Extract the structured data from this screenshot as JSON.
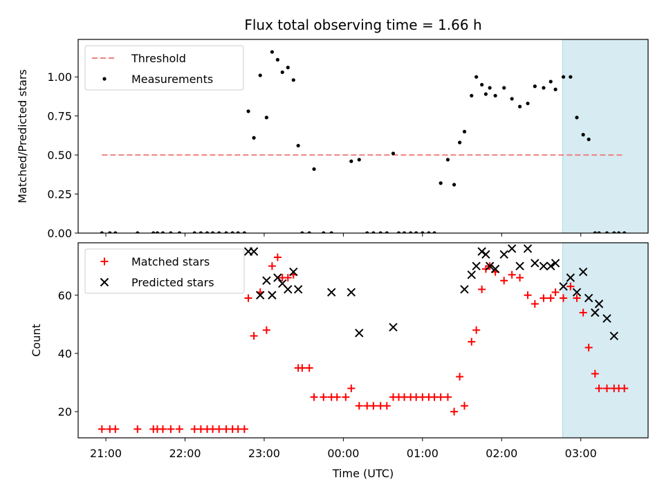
{
  "chart_data": {
    "type": "scatter",
    "title": "Flux total observing time = 1.66 h",
    "xlabel": "Time (UTC)",
    "x_tick_labels": [
      "21:00",
      "22:00",
      "23:00",
      "00:00",
      "01:00",
      "02:00",
      "03:00"
    ],
    "x_ticks_hours": [
      21,
      22,
      23,
      24,
      25,
      26,
      27
    ],
    "xlim_hours": [
      20.65,
      27.85
    ],
    "shaded_interval_hours": [
      26.77,
      28.43
    ],
    "shade_color": "#add8e6",
    "panels": [
      {
        "ylabel": "Matched/Predicted stars",
        "ylim": [
          0,
          1.24
        ],
        "y_ticks": [
          0,
          0.25,
          0.5,
          0.75,
          1.0
        ],
        "y_tick_labels": [
          "0.00",
          "0.25",
          "0.50",
          "0.75",
          "1.00"
        ],
        "legend": {
          "position": "top-left",
          "entries": [
            "Threshold",
            "Measurements"
          ]
        },
        "series": [
          {
            "name": "Threshold",
            "style": "dashed-line",
            "color": "#f08080",
            "x": [
              20.95,
              27.55
            ],
            "y": [
              0.5,
              0.5
            ]
          },
          {
            "name": "Measurements",
            "style": "dot",
            "color": "#000000",
            "x": [
              20.95,
              21.05,
              21.12,
              21.4,
              21.6,
              21.65,
              21.72,
              21.82,
              21.93,
              22.12,
              22.2,
              22.28,
              22.35,
              22.43,
              22.52,
              22.6,
              22.67,
              22.75,
              22.8,
              22.87,
              22.95,
              23.03,
              23.1,
              23.17,
              23.23,
              23.3,
              23.37,
              23.43,
              23.48,
              23.57,
              23.63,
              23.75,
              23.85,
              24.1,
              24.2,
              24.3,
              24.38,
              24.47,
              24.55,
              24.63,
              24.7,
              24.77,
              24.85,
              24.92,
              25.0,
              25.08,
              25.15,
              25.23,
              25.32,
              25.4,
              25.47,
              25.53,
              25.62,
              25.68,
              25.75,
              25.8,
              25.85,
              25.92,
              26.03,
              26.13,
              26.23,
              26.33,
              26.42,
              26.53,
              26.62,
              26.68,
              26.78,
              26.87,
              26.95,
              27.03,
              27.1,
              27.18,
              27.23,
              27.33,
              27.42,
              27.48,
              27.55
            ],
            "y": [
              0,
              0,
              0,
              0,
              0,
              0,
              0,
              0,
              0,
              0,
              0,
              0,
              0,
              0,
              0,
              0,
              0,
              0,
              0.78,
              0.61,
              1.01,
              0.74,
              1.16,
              1.11,
              1.03,
              1.06,
              0.98,
              0.56,
              0,
              0,
              0.41,
              0,
              0,
              0.46,
              0.47,
              0,
              0,
              0,
              0,
              0.51,
              0,
              0,
              0,
              0,
              0,
              0,
              0,
              0.32,
              0.47,
              0.31,
              0.58,
              0.65,
              0.88,
              1.0,
              0.95,
              0.89,
              0.93,
              0.88,
              0.93,
              0.86,
              0.81,
              0.83,
              0.94,
              0.93,
              0.97,
              0.92,
              1.0,
              1.0,
              0.74,
              0.63,
              0.6,
              0,
              0,
              0,
              0,
              0,
              0
            ]
          }
        ]
      },
      {
        "ylabel": "Count",
        "ylim": [
          11,
          78
        ],
        "y_ticks": [
          20,
          40,
          60
        ],
        "y_tick_labels": [
          "20",
          "40",
          "60"
        ],
        "legend": {
          "position": "top-left",
          "entries": [
            "Matched stars",
            "Predicted stars"
          ]
        },
        "series": [
          {
            "name": "Matched stars",
            "style": "plus",
            "color": "#ff0000",
            "x": [
              20.95,
              21.05,
              21.12,
              21.4,
              21.6,
              21.65,
              21.72,
              21.82,
              21.93,
              22.12,
              22.2,
              22.28,
              22.35,
              22.43,
              22.52,
              22.6,
              22.67,
              22.75,
              22.8,
              22.87,
              22.95,
              23.03,
              23.1,
              23.17,
              23.23,
              23.3,
              23.37,
              23.43,
              23.48,
              23.57,
              23.63,
              23.75,
              23.85,
              23.92,
              24.03,
              24.1,
              24.2,
              24.3,
              24.38,
              24.47,
              24.55,
              24.63,
              24.7,
              24.77,
              24.85,
              24.92,
              25.0,
              25.08,
              25.15,
              25.23,
              25.32,
              25.4,
              25.47,
              25.53,
              25.62,
              25.68,
              25.75,
              25.8,
              25.85,
              25.92,
              26.03,
              26.13,
              26.23,
              26.33,
              26.42,
              26.53,
              26.62,
              26.68,
              26.78,
              26.87,
              26.95,
              27.03,
              27.1,
              27.18,
              27.23,
              27.33,
              27.42,
              27.48,
              27.55
            ],
            "y": [
              14,
              14,
              14,
              14,
              14,
              14,
              14,
              14,
              14,
              14,
              14,
              14,
              14,
              14,
              14,
              14,
              14,
              14,
              59,
              46,
              61,
              48,
              70,
              73,
              66,
              66,
              67,
              35,
              35,
              35,
              25,
              25,
              25,
              25,
              25,
              28,
              22,
              22,
              22,
              22,
              22,
              25,
              25,
              25,
              25,
              25,
              25,
              25,
              25,
              25,
              25,
              20,
              32,
              22,
              44,
              48,
              62,
              69,
              70,
              68,
              65,
              67,
              66,
              60,
              57,
              59,
              59,
              61,
              59,
              63,
              59,
              54,
              42,
              33,
              28,
              28,
              28,
              28,
              28
            ]
          },
          {
            "name": "Predicted stars",
            "style": "x",
            "color": "#000000",
            "x": [
              22.8,
              22.87,
              22.95,
              23.03,
              23.1,
              23.17,
              23.23,
              23.3,
              23.37,
              23.43,
              23.85,
              24.1,
              24.2,
              24.63,
              25.53,
              25.62,
              25.68,
              25.75,
              25.8,
              25.85,
              25.92,
              26.03,
              26.13,
              26.23,
              26.33,
              26.42,
              26.53,
              26.62,
              26.68,
              26.78,
              26.87,
              26.95,
              27.03,
              27.1,
              27.18,
              27.23,
              27.33,
              27.42
            ],
            "y": [
              75,
              75,
              60,
              65,
              60,
              66,
              64,
              62,
              68,
              62,
              61,
              61,
              47,
              49,
              62,
              67,
              70,
              75,
              74,
              70,
              69,
              74,
              76,
              70,
              76,
              71,
              70,
              70,
              71,
              63,
              66,
              61,
              68,
              59,
              54,
              57,
              52,
              46
            ]
          }
        ]
      }
    ]
  }
}
